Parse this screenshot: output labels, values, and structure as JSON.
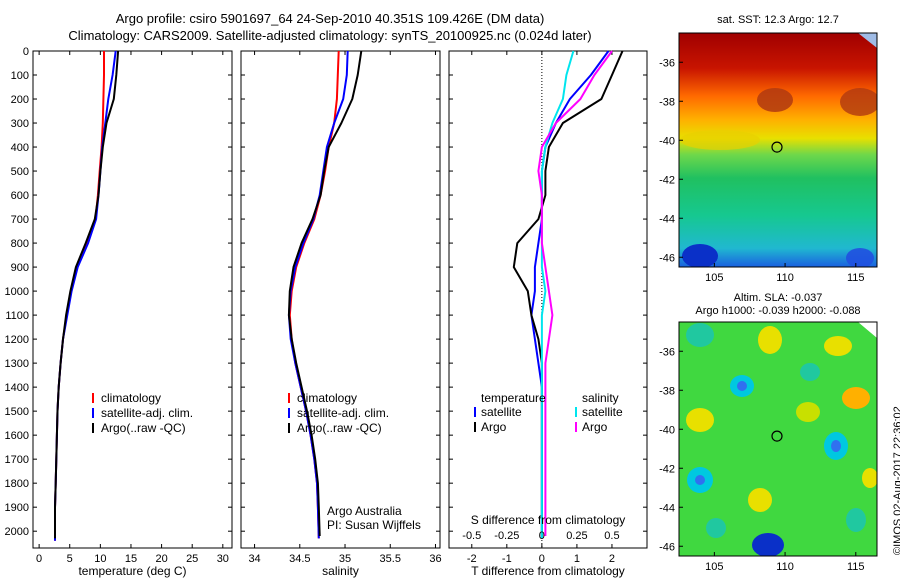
{
  "title": {
    "line1": "Argo profile: csiro 5901697_64 24-Sep-2010 40.351S 109.426E (DM data)",
    "line2": "Climatology: CARS2009. Satellite-adjusted climatology: synTS_20100925.nc (0.024d later)"
  },
  "colors": {
    "climatology": "#ff0000",
    "satellite": "#0000ff",
    "argo": "#000000",
    "sal_satellite": "#00e5ee",
    "sal_argo": "#ff00ff"
  },
  "chart_data": [
    {
      "type": "line",
      "xlabel": "temperature (deg C)",
      "xlim": [
        -1,
        31.5
      ],
      "xticks": [
        0,
        5,
        10,
        15,
        20,
        25,
        30
      ],
      "ylim": [
        0,
        2070
      ],
      "yticks": [
        0,
        100,
        200,
        300,
        400,
        500,
        600,
        700,
        800,
        900,
        1000,
        1100,
        1200,
        1300,
        1400,
        1500,
        1600,
        1700,
        1800,
        1900,
        2000
      ],
      "y_reversed": true,
      "legend": [
        "climatology",
        "satellite-adj. clim.",
        "Argo(..raw -QC)"
      ],
      "series": [
        {
          "name": "climatology",
          "color": "#ff0000",
          "x": [
            10.6,
            10.6,
            10.5,
            10.4,
            10.2,
            9.9,
            9.6,
            9.2,
            7.9,
            6.2,
            5.2,
            4.5,
            3.9,
            3.5,
            3.2,
            3.0,
            2.9,
            2.8,
            2.7,
            2.6,
            2.6
          ],
          "y": [
            0,
            100,
            200,
            300,
            400,
            500,
            600,
            700,
            800,
            900,
            1000,
            1100,
            1200,
            1300,
            1400,
            1500,
            1600,
            1700,
            1800,
            1900,
            2040
          ]
        },
        {
          "name": "satellite-adj. clim.",
          "color": "#0000ff",
          "x": [
            12.5,
            12.0,
            11.3,
            10.8,
            10.3,
            10.0,
            9.7,
            9.3,
            8.0,
            6.3,
            5.3,
            4.6,
            3.9,
            3.5,
            3.2,
            3.0,
            2.9,
            2.8,
            2.7,
            2.6,
            2.6
          ],
          "y": [
            0,
            100,
            200,
            300,
            400,
            500,
            600,
            700,
            800,
            900,
            1000,
            1100,
            1200,
            1300,
            1400,
            1500,
            1600,
            1700,
            1800,
            1900,
            2040
          ]
        },
        {
          "name": "Argo(..raw -QC)",
          "color": "#000000",
          "x": [
            12.9,
            12.6,
            12.2,
            11.0,
            10.4,
            10.0,
            9.7,
            9.1,
            7.6,
            6.0,
            5.1,
            4.4,
            3.9,
            3.5,
            3.2,
            3.0,
            2.9,
            2.8,
            2.7,
            2.6,
            2.6
          ],
          "y": [
            0,
            100,
            200,
            300,
            400,
            500,
            600,
            700,
            800,
            900,
            1000,
            1100,
            1200,
            1300,
            1400,
            1500,
            1600,
            1700,
            1800,
            1900,
            2030
          ]
        }
      ]
    },
    {
      "type": "line",
      "xlabel": "salinity",
      "xlim": [
        33.85,
        36.05
      ],
      "xticks": [
        34,
        34.5,
        35,
        35.5,
        36
      ],
      "ylim": [
        0,
        2070
      ],
      "y_reversed": true,
      "legend": [
        "climatology",
        "satellite-adj. clim.",
        "Argo(..raw -QC)"
      ],
      "annotation": [
        "Argo Australia",
        "PI: Susan Wijffels"
      ],
      "series": [
        {
          "name": "climatology",
          "color": "#ff0000",
          "x": [
            34.93,
            34.92,
            34.91,
            34.88,
            34.82,
            34.78,
            34.73,
            34.66,
            34.55,
            34.46,
            34.41,
            34.39,
            34.41,
            34.45,
            34.51,
            34.57,
            34.62,
            34.66,
            34.69,
            34.7,
            34.71
          ],
          "y": [
            0,
            100,
            200,
            300,
            400,
            500,
            600,
            700,
            800,
            900,
            1000,
            1100,
            1200,
            1300,
            1400,
            1500,
            1600,
            1700,
            1800,
            1900,
            2030
          ]
        },
        {
          "name": "satellite-adj. clim.",
          "color": "#0000ff",
          "x": [
            35.03,
            35.02,
            34.98,
            34.88,
            34.8,
            34.76,
            34.72,
            34.65,
            34.54,
            34.45,
            34.4,
            34.38,
            34.4,
            34.45,
            34.51,
            34.57,
            34.62,
            34.66,
            34.69,
            34.7,
            34.71
          ],
          "y": [
            0,
            100,
            200,
            300,
            400,
            500,
            600,
            700,
            800,
            900,
            1000,
            1100,
            1200,
            1300,
            1400,
            1500,
            1600,
            1700,
            1800,
            1900,
            2030
          ]
        },
        {
          "name": "Argo(..raw -QC)",
          "color": "#000000",
          "x": [
            35.18,
            35.14,
            35.08,
            34.96,
            34.82,
            34.77,
            34.73,
            34.64,
            34.52,
            34.43,
            34.39,
            34.38,
            34.41,
            34.46,
            34.52,
            34.58,
            34.63,
            34.67,
            34.7,
            34.71,
            34.72
          ],
          "y": [
            0,
            100,
            200,
            300,
            400,
            500,
            600,
            700,
            800,
            900,
            1000,
            1100,
            1200,
            1300,
            1400,
            1500,
            1600,
            1700,
            1800,
            1900,
            2020
          ]
        }
      ]
    },
    {
      "type": "line",
      "xlabel": "T difference from climatology",
      "xlabel_top": "S difference from climatology",
      "xlim": [
        -2.65,
        3.0
      ],
      "xticks": [
        -2,
        -1,
        0,
        1,
        2
      ],
      "xticks_top": [
        {
          "label": "-0.5",
          "at": -2
        },
        {
          "label": "-0.25",
          "at": -1
        },
        {
          "label": "0",
          "at": 0
        },
        {
          "label": "0.25",
          "at": 1
        },
        {
          "label": "0.5",
          "at": 2
        }
      ],
      "ylim": [
        0,
        2070
      ],
      "y_reversed": true,
      "zero_line": true,
      "legend_headers": [
        "temperature",
        "salinity"
      ],
      "legend": [
        "satellite",
        "Argo",
        "satellite",
        "Argo"
      ],
      "series": [
        {
          "name": "satellite",
          "color": "#0000ff",
          "x": [
            1.9,
            1.4,
            0.8,
            0.4,
            0.1,
            0.0,
            0.0,
            0.0,
            -0.1,
            -0.2,
            -0.2,
            -0.3,
            -0.2,
            -0.1,
            0.0,
            0.0,
            0.0,
            0.0,
            0.0,
            0.0,
            0.0
          ],
          "y": [
            0,
            100,
            200,
            300,
            400,
            500,
            600,
            700,
            800,
            900,
            1000,
            1100,
            1200,
            1300,
            1400,
            1500,
            1600,
            1700,
            1800,
            1900,
            2030
          ]
        },
        {
          "name": "Argo",
          "color": "#000000",
          "x": [
            2.3,
            2.0,
            1.7,
            0.6,
            0.2,
            0.1,
            0.1,
            -0.1,
            -0.7,
            -0.8,
            -0.4,
            -0.3,
            -0.1,
            0.0,
            0.0,
            0.0,
            0.0,
            0.0,
            0.0,
            0.0,
            0.0
          ],
          "y": [
            0,
            100,
            200,
            300,
            400,
            500,
            600,
            700,
            800,
            900,
            1000,
            1100,
            1200,
            1300,
            1400,
            1500,
            1600,
            1700,
            1800,
            1900,
            2020
          ]
        },
        {
          "name": "satellite",
          "color": "#00e5ee",
          "x": [
            0.9,
            0.7,
            0.6,
            0.3,
            0.1,
            0.0,
            0.0,
            0.0,
            0.0,
            0.0,
            0.1,
            0.0,
            0.0,
            0.0,
            0.0,
            0.0,
            0.0,
            0.0,
            0.0,
            0.0,
            0.0
          ],
          "y": [
            0,
            100,
            200,
            300,
            400,
            500,
            600,
            700,
            800,
            900,
            1000,
            1100,
            1200,
            1300,
            1400,
            1500,
            1600,
            1700,
            1800,
            1900,
            2030
          ]
        },
        {
          "name": "Argo",
          "color": "#ff00ff",
          "x": [
            2.0,
            1.5,
            1.1,
            0.4,
            0.0,
            -0.1,
            0.0,
            0.0,
            0.0,
            0.1,
            0.2,
            0.3,
            0.2,
            0.1,
            0.1,
            0.1,
            0.1,
            0.1,
            0.1,
            0.1,
            0.1
          ],
          "y": [
            0,
            100,
            200,
            300,
            400,
            500,
            600,
            700,
            800,
            900,
            1000,
            1100,
            1200,
            1300,
            1400,
            1500,
            1600,
            1700,
            1800,
            1900,
            2020
          ]
        }
      ]
    },
    {
      "type": "heatmap",
      "title": "sat. SST: 12.3 Argo: 12.7",
      "xticks": [
        105,
        110,
        115
      ],
      "yticks": [
        -36,
        -38,
        -40,
        -42,
        -44,
        -46
      ],
      "xlim": [
        102.5,
        116.5
      ],
      "ylim": [
        -46.5,
        -34.5
      ],
      "argo_position": {
        "lon": 109.426,
        "lat": -40.351
      }
    },
    {
      "type": "heatmap",
      "title": "Altim. SLA: -0.037",
      "subtitle": "Argo h1000: -0.039 h2000: -0.088",
      "xticks": [
        105,
        110,
        115
      ],
      "yticks": [
        -36,
        -38,
        -40,
        -42,
        -44,
        -46
      ],
      "xlim": [
        102.5,
        116.5
      ],
      "ylim": [
        -46.5,
        -34.5
      ],
      "argo_position": {
        "lon": 109.426,
        "lat": -40.351
      }
    }
  ],
  "stamp": "©IMOS 02-Aug-2017 22:36:02"
}
